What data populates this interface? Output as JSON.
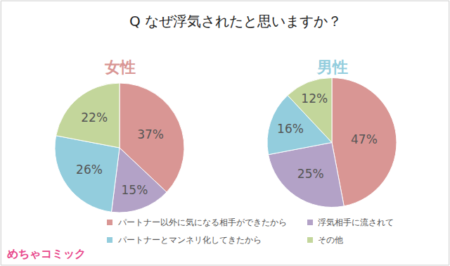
{
  "title": "Q なぜ浮気されたと思いますか？",
  "logo": "めちゃコミック",
  "chart_data": [
    {
      "type": "pie",
      "title": "女性",
      "categories": [
        "パートナー以外に気になる相手ができたから",
        "浮気相手に流されて",
        "パートナーとマンネリ化してきたから",
        "その他"
      ],
      "values": [
        37,
        15,
        26,
        22
      ],
      "value_labels": [
        "37%",
        "15%",
        "26%",
        "22%"
      ],
      "colors": [
        "#d99694",
        "#b3a2c7",
        "#93cddd",
        "#c3d69b"
      ],
      "data_labels": true,
      "legend": "bottom"
    },
    {
      "type": "pie",
      "title": "男性",
      "categories": [
        "パートナー以外に気になる相手ができたから",
        "浮気相手に流されて",
        "パートナーとマンネリ化してきたから",
        "その他"
      ],
      "values": [
        47,
        25,
        16,
        12
      ],
      "value_labels": [
        "47%",
        "25%",
        "16%",
        "12%"
      ],
      "colors": [
        "#d99694",
        "#b3a2c7",
        "#93cddd",
        "#c3d69b"
      ],
      "data_labels": true,
      "legend": "bottom"
    }
  ]
}
